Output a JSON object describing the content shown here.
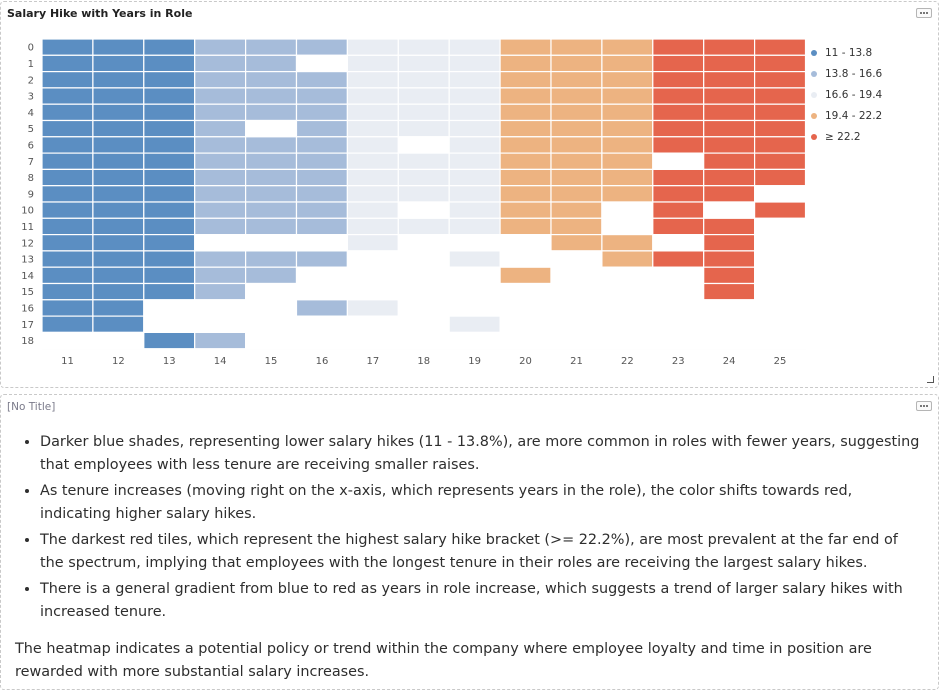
{
  "chart_panel": {
    "title": "Salary Hike with Years in Role"
  },
  "chart_data": {
    "type": "heatmap",
    "title": "Salary Hike with Years in Role",
    "x_categories": [
      "11",
      "12",
      "13",
      "14",
      "15",
      "16",
      "17",
      "18",
      "19",
      "20",
      "21",
      "22",
      "23",
      "24",
      "25"
    ],
    "y_categories": [
      "0",
      "1",
      "2",
      "3",
      "4",
      "5",
      "6",
      "7",
      "8",
      "9",
      "10",
      "11",
      "12",
      "13",
      "14",
      "15",
      "16",
      "17",
      "18"
    ],
    "legend": [
      {
        "label": "11 - 13.8",
        "color": "#5b8ec2"
      },
      {
        "label": "13.8 - 16.6",
        "color": "#a6bcda"
      },
      {
        "label": "16.6 - 19.4",
        "color": "#e9edf3"
      },
      {
        "label": "19.4 - 22.2",
        "color": "#edb381"
      },
      {
        "label": "≥ 22.2",
        "color": "#e5654d"
      }
    ],
    "legend_position": "right",
    "grid": true,
    "cells": [
      [
        1,
        1,
        1,
        1,
        1,
        1,
        1,
        1,
        1,
        1,
        1,
        1,
        1,
        1,
        1,
        1,
        1,
        1,
        0
      ],
      [
        1,
        1,
        1,
        1,
        1,
        1,
        1,
        1,
        1,
        1,
        1,
        1,
        1,
        1,
        1,
        1,
        1,
        1,
        0
      ],
      [
        1,
        1,
        1,
        1,
        1,
        1,
        1,
        1,
        1,
        1,
        1,
        1,
        1,
        1,
        1,
        1,
        0,
        0,
        1
      ],
      [
        1,
        1,
        1,
        1,
        1,
        1,
        1,
        1,
        1,
        1,
        1,
        1,
        0,
        1,
        1,
        1,
        0,
        0,
        1
      ],
      [
        1,
        1,
        1,
        1,
        1,
        0,
        1,
        1,
        1,
        1,
        1,
        1,
        0,
        1,
        1,
        0,
        0,
        0,
        0
      ],
      [
        1,
        0,
        1,
        1,
        1,
        1,
        1,
        1,
        1,
        1,
        1,
        1,
        0,
        1,
        0,
        0,
        1,
        0,
        0
      ],
      [
        1,
        1,
        1,
        1,
        1,
        1,
        1,
        1,
        1,
        1,
        1,
        1,
        1,
        0,
        0,
        0,
        1,
        0,
        0
      ],
      [
        1,
        1,
        1,
        1,
        1,
        1,
        0,
        1,
        1,
        1,
        0,
        1,
        0,
        0,
        0,
        0,
        0,
        0,
        0
      ],
      [
        1,
        1,
        1,
        1,
        1,
        1,
        1,
        1,
        1,
        1,
        1,
        1,
        0,
        1,
        0,
        0,
        0,
        1,
        0
      ],
      [
        1,
        1,
        1,
        1,
        1,
        1,
        1,
        1,
        1,
        1,
        1,
        1,
        0,
        0,
        1,
        0,
        0,
        0,
        0
      ],
      [
        1,
        1,
        1,
        1,
        1,
        1,
        1,
        1,
        1,
        1,
        1,
        1,
        1,
        0,
        0,
        0,
        0,
        0,
        0
      ],
      [
        1,
        1,
        1,
        1,
        1,
        1,
        1,
        1,
        1,
        1,
        0,
        0,
        1,
        1,
        0,
        0,
        0,
        0,
        0
      ],
      [
        1,
        1,
        1,
        1,
        1,
        1,
        1,
        0,
        1,
        1,
        1,
        1,
        0,
        1,
        0,
        0,
        0,
        0,
        0
      ],
      [
        1,
        1,
        1,
        1,
        1,
        1,
        1,
        1,
        1,
        1,
        0,
        1,
        1,
        1,
        1,
        1,
        0,
        0,
        0
      ],
      [
        1,
        1,
        1,
        1,
        1,
        1,
        1,
        1,
        1,
        0,
        1,
        0,
        0,
        0,
        0,
        0,
        0,
        0,
        0
      ]
    ]
  },
  "text_panel": {
    "title": "[No Title]",
    "bullets": [
      "Darker blue shades, representing lower salary hikes (11 - 13.8%), are more common in roles with fewer years, suggesting that employees with less tenure are receiving smaller raises.",
      "As tenure increases (moving right on the x-axis, which represents years in the role), the color shifts towards red, indicating higher salary hikes.",
      "The darkest red tiles, which represent the highest salary hike bracket (>= 22.2%), are most prevalent at the far end of the spectrum, implying that employees with the longest tenure in their roles are receiving the largest salary hikes.",
      "There is a general gradient from blue to red as years in role increase, which suggests a trend of larger salary hikes with increased tenure."
    ],
    "paragraph": "The heatmap indicates a potential policy or trend within the company where employee loyalty and time in position are rewarded with more substantial salary increases."
  }
}
